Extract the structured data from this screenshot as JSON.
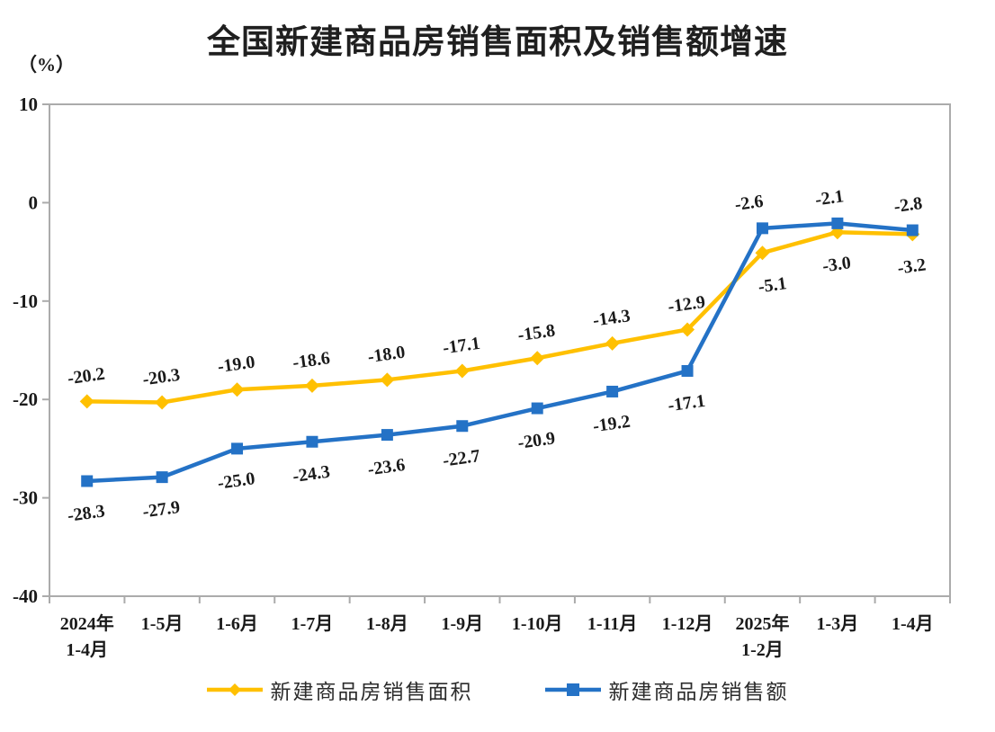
{
  "page": {
    "background_color": "#ffffff"
  },
  "chart": {
    "title": "全国新建商品房销售面积及销售额增速",
    "unit_label": "（%）",
    "legend": [
      {
        "label": "新建商品房销售面积",
        "color": "#FFC000",
        "marker": "diamond"
      },
      {
        "label": "新建商品房销售额",
        "color": "#2472C6",
        "marker": "square"
      }
    ]
  },
  "chart_data": {
    "type": "line",
    "title": "全国新建商品房销售面积及销售额增速",
    "ylabel": "（%）",
    "ylim": [
      -40,
      10
    ],
    "yticks": [
      10,
      0,
      -10,
      -20,
      -30,
      -40
    ],
    "grid": false,
    "legend_position": "bottom",
    "categories": [
      "2024年\n1-4月",
      "1-5月",
      "1-6月",
      "1-7月",
      "1-8月",
      "1-9月",
      "1-10月",
      "1-11月",
      "1-12月",
      "2025年\n1-2月",
      "1-3月",
      "1-4月"
    ],
    "series": [
      {
        "name": "新建商品房销售面积",
        "color": "#FFC000",
        "marker": "diamond",
        "values": [
          -20.2,
          -20.3,
          -19.0,
          -18.6,
          -18.0,
          -17.1,
          -15.8,
          -14.3,
          -12.9,
          -5.1,
          -3.0,
          -3.2
        ],
        "label_side": "above",
        "label_flip_index": 9,
        "label_dx": [
          0,
          0,
          0,
          0,
          0,
          0,
          0,
          0,
          0,
          12,
          0,
          0
        ]
      },
      {
        "name": "新建商品房销售额",
        "color": "#2472C6",
        "marker": "square",
        "values": [
          -28.3,
          -27.9,
          -25.0,
          -24.3,
          -23.6,
          -22.7,
          -20.9,
          -19.2,
          -17.1,
          -2.6,
          -2.1,
          -2.8
        ],
        "label_side": "below",
        "label_flip_index": 9,
        "label_dx": [
          0,
          0,
          0,
          0,
          0,
          0,
          0,
          0,
          0,
          -14,
          -8,
          -4
        ]
      }
    ],
    "axis_color": "#ABABAB",
    "label_rotation_deg": -8
  }
}
